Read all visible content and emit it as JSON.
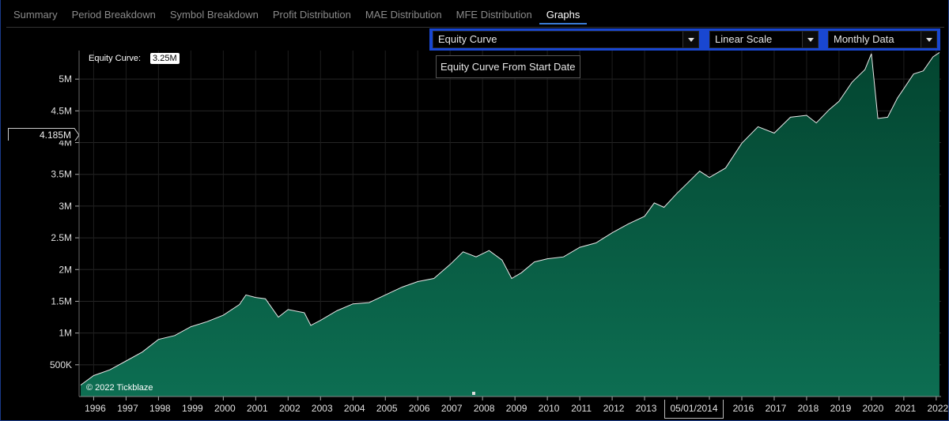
{
  "tabs": [
    {
      "label": "Summary",
      "active": false
    },
    {
      "label": "Period Breakdown",
      "active": false
    },
    {
      "label": "Symbol Breakdown",
      "active": false
    },
    {
      "label": "Profit Distribution",
      "active": false
    },
    {
      "label": "MAE Distribution",
      "active": false
    },
    {
      "label": "MFE Distribution",
      "active": false
    },
    {
      "label": "Graphs",
      "active": true
    }
  ],
  "toolbar": {
    "chart_select": "Equity Curve",
    "scale_select": "Linear Scale",
    "period_select": "Monthly Data"
  },
  "tooltip": "Equity Curve From Start Date",
  "legend": {
    "label": "Equity Curve:",
    "value": "3.25M"
  },
  "watermark": "© 2022 Tickblaze",
  "crosshair": {
    "y_value": "4.185M",
    "x_value": "05/01/2014"
  },
  "colors": {
    "accent": "#1947d1",
    "area_top": "#0a6a4d",
    "area_bottom": "#0e6e52",
    "line": "#ffffff"
  },
  "chart_data": {
    "type": "area",
    "title": "",
    "xlabel": "",
    "ylabel": "",
    "ylim": [
      0,
      5450000
    ],
    "xlim": [
      1995.55,
      2022.15
    ],
    "y_ticks": [
      "500K",
      "1M",
      "1.5M",
      "2M",
      "2.5M",
      "3M",
      "3.5M",
      "4M",
      "4.5M",
      "5M"
    ],
    "y_tick_values": [
      500000,
      1000000,
      1500000,
      2000000,
      2500000,
      3000000,
      3500000,
      4000000,
      4500000,
      5000000
    ],
    "x_ticks": [
      "1996",
      "1997",
      "1998",
      "1999",
      "2000",
      "2001",
      "2002",
      "2003",
      "2004",
      "2005",
      "2006",
      "2007",
      "2008",
      "2009",
      "2010",
      "2011",
      "2012",
      "2013",
      "2014",
      "2015",
      "2016",
      "2017",
      "2018",
      "2019",
      "2020",
      "2021",
      "2022"
    ],
    "grid": true,
    "series": [
      {
        "x": [
          1995.6,
          1996.0,
          1996.5,
          1997.0,
          1997.5,
          1998.0,
          1998.5,
          1999.0,
          1999.5,
          2000.0,
          2000.5,
          2000.7,
          2001.0,
          2001.3,
          2001.7,
          2002.0,
          2002.5,
          2002.7,
          2003.0,
          2003.5,
          2004.0,
          2004.5,
          2005.0,
          2005.5,
          2006.0,
          2006.5,
          2007.0,
          2007.4,
          2007.8,
          2008.2,
          2008.6,
          2008.9,
          2009.2,
          2009.6,
          2010.0,
          2010.5,
          2011.0,
          2011.5,
          2012.0,
          2012.5,
          2013.0,
          2013.3,
          2013.6,
          2014.0,
          2014.3,
          2014.7,
          2015.0,
          2015.5,
          2016.0,
          2016.5,
          2017.0,
          2017.5,
          2018.0,
          2018.3,
          2018.7,
          2019.0,
          2019.4,
          2019.8,
          2020.0,
          2020.2,
          2020.5,
          2020.8,
          2021.0,
          2021.3,
          2021.6,
          2021.9,
          2022.1
        ],
        "y": [
          180000,
          330000,
          420000,
          560000,
          700000,
          900000,
          960000,
          1100000,
          1180000,
          1280000,
          1450000,
          1600000,
          1560000,
          1540000,
          1250000,
          1370000,
          1320000,
          1120000,
          1200000,
          1350000,
          1460000,
          1480000,
          1600000,
          1720000,
          1810000,
          1860000,
          2080000,
          2280000,
          2200000,
          2300000,
          2150000,
          1860000,
          1950000,
          2120000,
          2170000,
          2200000,
          2350000,
          2420000,
          2580000,
          2720000,
          2840000,
          3050000,
          2980000,
          3200000,
          3350000,
          3550000,
          3450000,
          3600000,
          3990000,
          4250000,
          4150000,
          4400000,
          4430000,
          4310000,
          4520000,
          4650000,
          4950000,
          5150000,
          5400000,
          4380000,
          4400000,
          4700000,
          4850000,
          5080000,
          5130000,
          5350000,
          5420000
        ]
      }
    ]
  }
}
